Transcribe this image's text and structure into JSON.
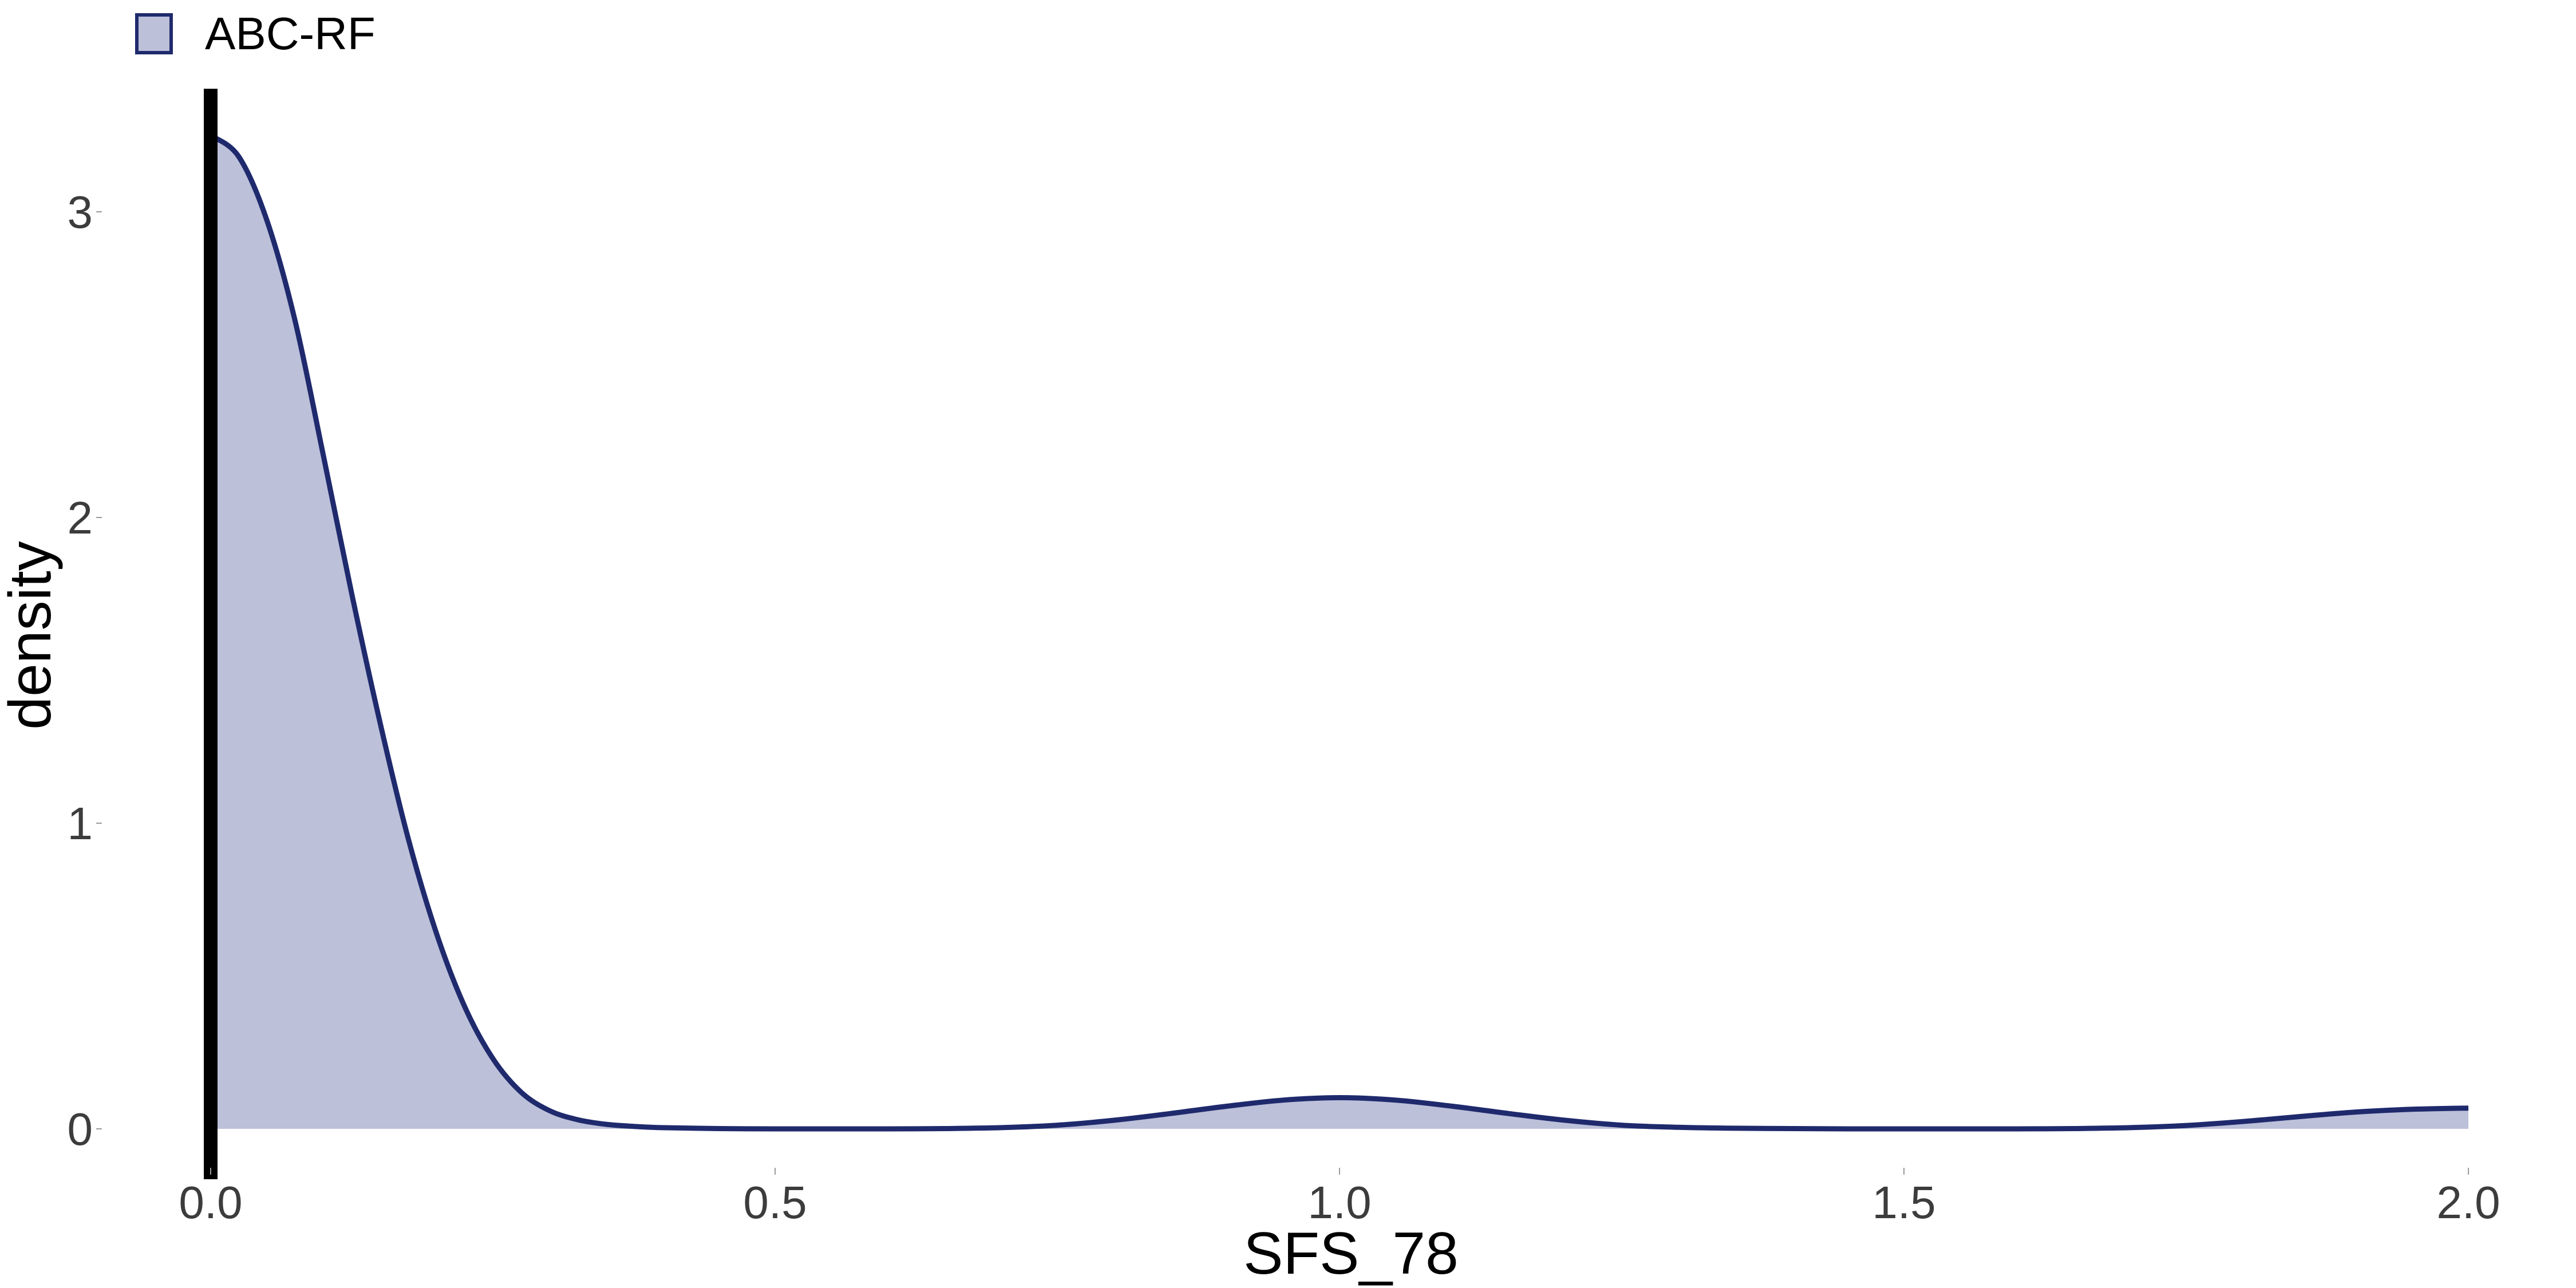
{
  "chart_data": {
    "type": "area",
    "title": "",
    "xlabel": "SFS_78",
    "ylabel": "density",
    "xlim": [
      0,
      2
    ],
    "ylim": [
      0,
      3.25
    ],
    "x_ticks": [
      "0.0",
      "0.5",
      "1.0",
      "1.5",
      "2.0"
    ],
    "y_ticks": [
      "0",
      "1",
      "2",
      "3"
    ],
    "grid": false,
    "legend_position": "top-left",
    "series": [
      {
        "name": "ABC-RF",
        "line_color": "#1f2a6d",
        "fill_color": "#bcc0d9",
        "x": [
          0,
          0.025,
          0.05,
          0.075,
          0.1,
          0.125,
          0.15,
          0.175,
          0.2,
          0.225,
          0.25,
          0.275,
          0.3,
          0.325,
          0.35,
          0.375,
          0.4,
          0.45,
          0.5,
          0.55,
          0.6,
          0.65,
          0.7,
          0.75,
          0.8,
          0.85,
          0.9,
          0.95,
          1.0,
          1.05,
          1.1,
          1.15,
          1.2,
          1.25,
          1.3,
          1.35,
          1.4,
          1.45,
          1.5,
          1.55,
          1.6,
          1.65,
          1.7,
          1.75,
          1.8,
          1.85,
          1.9,
          1.95,
          2.0
        ],
        "y": [
          3.25,
          3.18,
          2.97,
          2.64,
          2.2,
          1.75,
          1.33,
          0.95,
          0.64,
          0.4,
          0.23,
          0.12,
          0.06,
          0.03,
          0.015,
          0.008,
          0.004,
          0.001,
          0.0,
          0.0,
          0.0,
          0.001,
          0.004,
          0.012,
          0.028,
          0.05,
          0.074,
          0.094,
          0.102,
          0.094,
          0.074,
          0.05,
          0.028,
          0.012,
          0.005,
          0.002,
          0.001,
          0.0,
          0.0,
          0.0,
          0.0,
          0.001,
          0.004,
          0.011,
          0.024,
          0.04,
          0.055,
          0.064,
          0.068
        ]
      }
    ],
    "vertical_line": {
      "x": 0,
      "color": "#000000"
    }
  }
}
